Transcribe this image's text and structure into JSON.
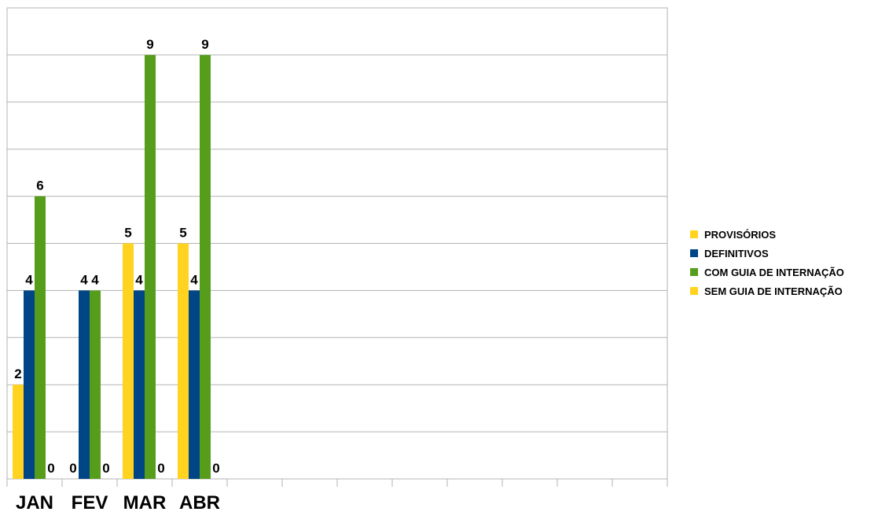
{
  "chart_data": {
    "type": "bar",
    "title": "",
    "xlabel": "",
    "ylabel": "",
    "categories": [
      "JAN",
      "FEV",
      "MAR",
      "ABR"
    ],
    "category_slots": 12,
    "ylim": [
      0,
      10
    ],
    "ytick_step": 1,
    "grid": true,
    "legend_position": "right",
    "series": [
      {
        "name": "PROVISÓRIOS",
        "color": "#ffd320",
        "values": [
          2,
          0,
          5,
          5
        ],
        "labels": [
          "2",
          "0",
          "5",
          "5"
        ]
      },
      {
        "name": "DEFINITIVOS",
        "color": "#004586",
        "values": [
          4,
          4,
          4,
          4
        ],
        "labels": [
          "4",
          "4",
          "4",
          "4"
        ]
      },
      {
        "name": "COM GUIA DE INTERNAÇÃO",
        "color": "#579d1c",
        "values": [
          6,
          4,
          9,
          9
        ],
        "labels": [
          "6",
          "4",
          "9",
          "9"
        ]
      },
      {
        "name": "SEM GUIA DE INTERNAÇÃO",
        "color": "#ffd320",
        "values": [
          0,
          0,
          0,
          0
        ],
        "labels": [
          "0",
          "0",
          "0",
          "0"
        ]
      }
    ]
  }
}
